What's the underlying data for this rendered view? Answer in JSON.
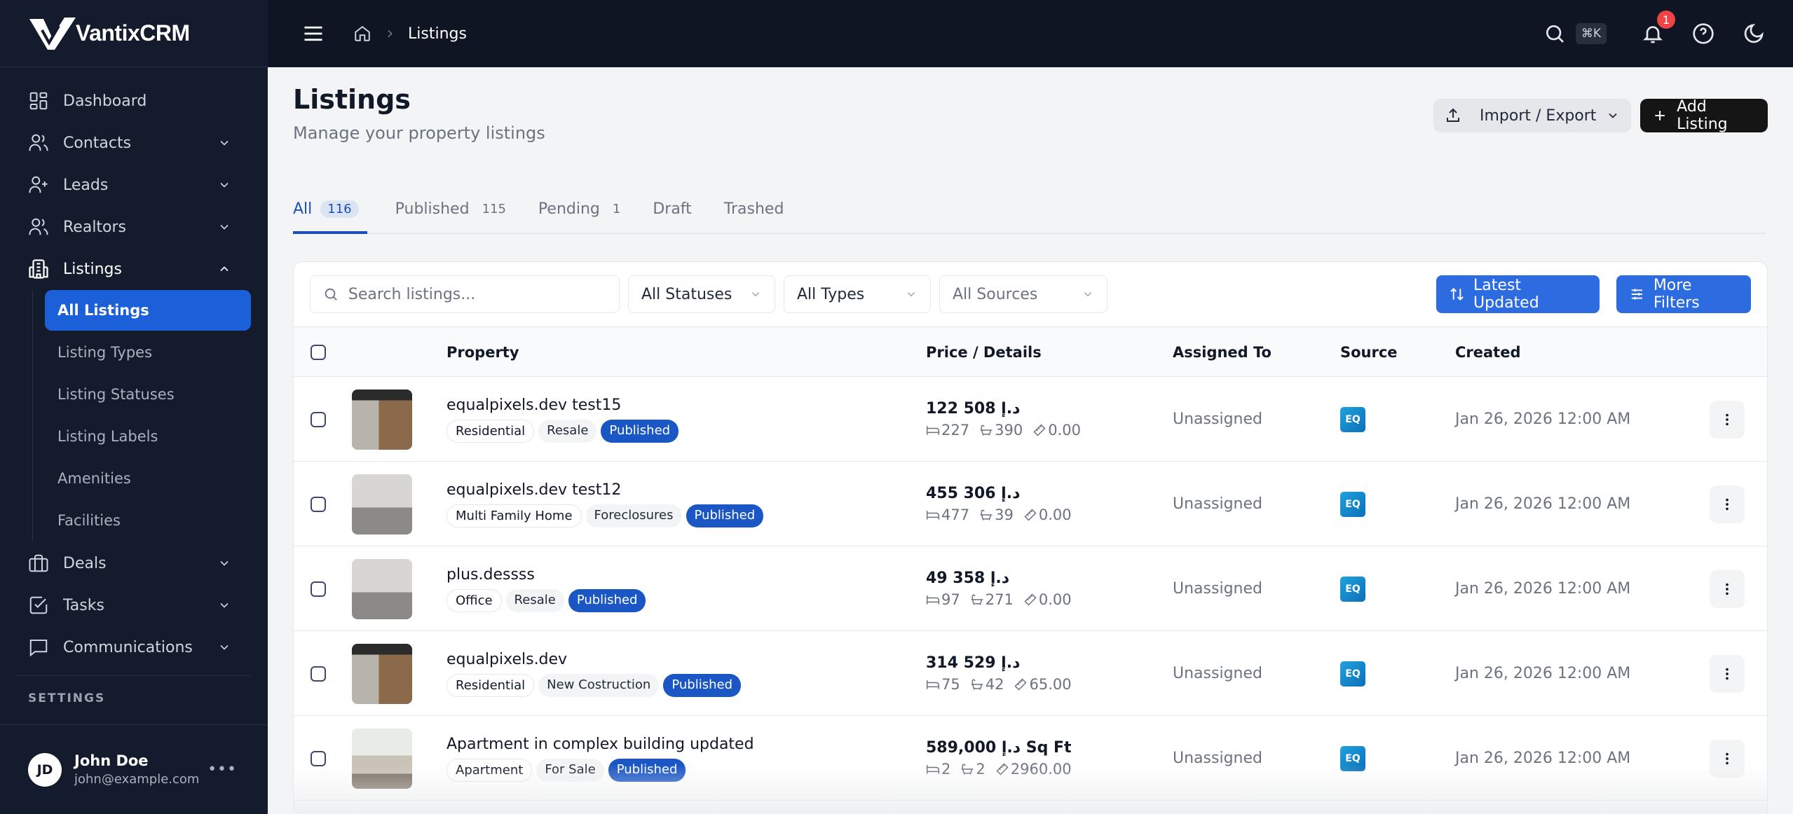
{
  "app": {
    "name": "VantixCRM"
  },
  "sidebar": {
    "items": [
      {
        "label": "Dashboard",
        "icon": "dashboard-icon",
        "has_chevron": false
      },
      {
        "label": "Contacts",
        "icon": "users-icon",
        "has_chevron": true
      },
      {
        "label": "Leads",
        "icon": "user-plus-icon",
        "has_chevron": true
      },
      {
        "label": "Realtors",
        "icon": "users-icon",
        "has_chevron": true
      },
      {
        "label": "Listings",
        "icon": "building-icon",
        "has_chevron": true,
        "expanded": true
      },
      {
        "label": "Deals",
        "icon": "briefcase-icon",
        "has_chevron": true
      },
      {
        "label": "Tasks",
        "icon": "checkbox-icon",
        "has_chevron": true
      },
      {
        "label": "Communications",
        "icon": "message-icon",
        "has_chevron": true
      }
    ],
    "listings_sub": [
      {
        "label": "All Listings",
        "active": true
      },
      {
        "label": "Listing Types"
      },
      {
        "label": "Listing Statuses"
      },
      {
        "label": "Listing Labels"
      },
      {
        "label": "Amenities"
      },
      {
        "label": "Facilities"
      }
    ],
    "section_label": "SETTINGS",
    "user": {
      "initials": "JD",
      "name": "John Doe",
      "email": "john@example.com",
      "more": "•••"
    }
  },
  "topbar": {
    "breadcrumb": [
      "Listings"
    ],
    "shortcut": "⌘K",
    "notification_count": "1"
  },
  "page": {
    "title": "Listings",
    "subtitle": "Manage your property listings",
    "import_export_label": "Import / Export",
    "add_label": "Add Listing"
  },
  "tabs": [
    {
      "label": "All",
      "count": "116",
      "active": true
    },
    {
      "label": "Published",
      "count": "115"
    },
    {
      "label": "Pending",
      "count": "1"
    },
    {
      "label": "Draft",
      "count": ""
    },
    {
      "label": "Trashed",
      "count": ""
    }
  ],
  "filters": {
    "search_placeholder": "Search listings...",
    "search_value": "",
    "status": "All Statuses",
    "type": "All Types",
    "source": "All Sources",
    "sort_label": "Latest Updated",
    "more_filters_label": "More Filters"
  },
  "table": {
    "columns": [
      "Property",
      "Price / Details",
      "Assigned To",
      "Source",
      "Created"
    ],
    "rows": [
      {
        "name": "equalpixels.dev test15",
        "tags": [
          "Residential",
          "Resale",
          "Published"
        ],
        "price": "122 508 د.إ",
        "beds": "227",
        "baths": "390",
        "area": "0.00",
        "assigned": "Unassigned",
        "source": "EQ",
        "created": "Jan 26, 2026 12:00 AM",
        "thumb": "office"
      },
      {
        "name": "equalpixels.dev test12",
        "tags": [
          "Multi Family Home",
          "Foreclosures",
          "Published"
        ],
        "price": "455 306 د.إ",
        "beds": "477",
        "baths": "39",
        "area": "0.00",
        "assigned": "Unassigned",
        "source": "EQ",
        "created": "Jan 26, 2026 12:00 AM",
        "thumb": "garage"
      },
      {
        "name": "plus.dessss",
        "tags": [
          "Office",
          "Resale",
          "Published"
        ],
        "price": "49 358 د.إ",
        "beds": "97",
        "baths": "271",
        "area": "0.00",
        "assigned": "Unassigned",
        "source": "EQ",
        "created": "Jan 26, 2026 12:00 AM",
        "thumb": "garage"
      },
      {
        "name": "equalpixels.dev",
        "tags": [
          "Residential",
          "New Costruction",
          "Published"
        ],
        "price": "314 529 د.إ",
        "beds": "75",
        "baths": "42",
        "area": "65.00",
        "assigned": "Unassigned",
        "source": "EQ",
        "created": "Jan 26, 2026 12:00 AM",
        "thumb": "office"
      },
      {
        "name": "Apartment in complex building updated",
        "tags": [
          "Apartment",
          "For Sale",
          "Published"
        ],
        "price": "589,000 د.إ Sq Ft",
        "beds": "2",
        "baths": "2",
        "area": "2960.00",
        "assigned": "Unassigned",
        "source": "EQ",
        "created": "Jan 26, 2026 12:00 AM",
        "thumb": "living"
      }
    ]
  },
  "colors": {
    "accent": "#2c6be0",
    "sidebar_bg": "#141b2d",
    "topbar_bg": "#0f1522",
    "published_tag": "#1b57c4",
    "badge": "#ef4444"
  }
}
